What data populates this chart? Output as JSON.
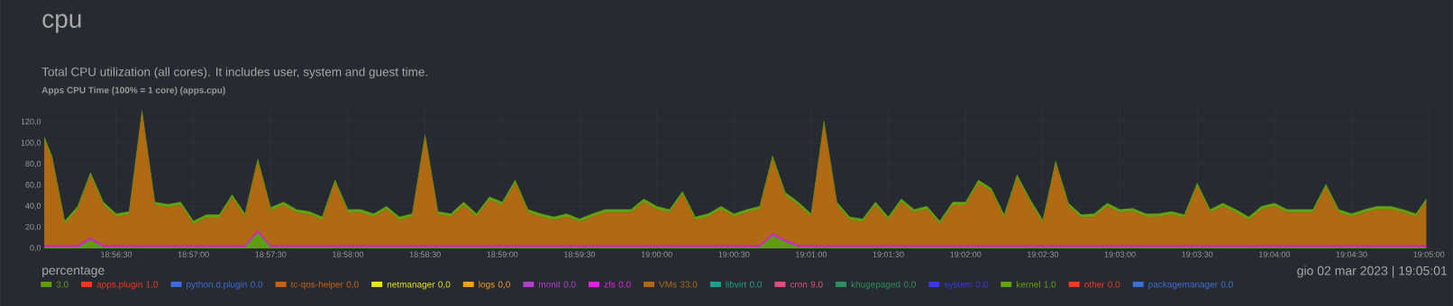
{
  "chart_data": {
    "type": "area",
    "stacked": true,
    "title": "cpu",
    "subtitle": "Total CPU utilization (all cores). It includes user, system and guest time.",
    "annotations": [
      "Apps CPU Time (100% = 1 core) (apps.cpu)",
      "gio 02 mar 2023 | 19:05:01",
      "percentage"
    ],
    "x": [
      "2023-03-02T18:56:02",
      "2023-03-02T18:56:05",
      "2023-03-02T18:56:10",
      "2023-03-02T18:56:15",
      "2023-03-02T18:56:20",
      "2023-03-02T18:56:25",
      "2023-03-02T18:56:30",
      "2023-03-02T18:56:35",
      "2023-03-02T18:56:40",
      "2023-03-02T18:56:45",
      "2023-03-02T18:56:50",
      "2023-03-02T18:56:55",
      "2023-03-02T18:57:00",
      "2023-03-02T18:57:05",
      "2023-03-02T18:57:10",
      "2023-03-02T18:57:15",
      "2023-03-02T18:57:20",
      "2023-03-02T18:57:25",
      "2023-03-02T18:57:30",
      "2023-03-02T18:57:35",
      "2023-03-02T18:57:40",
      "2023-03-02T18:57:45",
      "2023-03-02T18:57:50",
      "2023-03-02T18:57:55",
      "2023-03-02T18:58:00",
      "2023-03-02T18:58:05",
      "2023-03-02T18:58:10",
      "2023-03-02T18:58:15",
      "2023-03-02T18:58:20",
      "2023-03-02T18:58:25",
      "2023-03-02T18:58:30",
      "2023-03-02T18:58:35",
      "2023-03-02T18:58:40",
      "2023-03-02T18:58:45",
      "2023-03-02T18:58:50",
      "2023-03-02T18:58:55",
      "2023-03-02T18:59:00",
      "2023-03-02T18:59:05",
      "2023-03-02T18:59:10",
      "2023-03-02T18:59:15",
      "2023-03-02T18:59:20",
      "2023-03-02T18:59:25",
      "2023-03-02T18:59:30",
      "2023-03-02T18:59:35",
      "2023-03-02T18:59:40",
      "2023-03-02T18:59:45",
      "2023-03-02T18:59:50",
      "2023-03-02T18:59:55",
      "2023-03-02T19:00:00",
      "2023-03-02T19:00:05",
      "2023-03-02T19:00:10",
      "2023-03-02T19:00:15",
      "2023-03-02T19:00:20",
      "2023-03-02T19:00:25",
      "2023-03-02T19:00:30",
      "2023-03-02T19:00:35",
      "2023-03-02T19:00:40",
      "2023-03-02T19:00:45",
      "2023-03-02T19:00:50",
      "2023-03-02T19:00:55",
      "2023-03-02T19:01:00",
      "2023-03-02T19:01:05",
      "2023-03-02T19:01:10",
      "2023-03-02T19:01:15",
      "2023-03-02T19:01:20",
      "2023-03-02T19:01:25",
      "2023-03-02T19:01:30",
      "2023-03-02T19:01:35",
      "2023-03-02T19:01:40",
      "2023-03-02T19:01:45",
      "2023-03-02T19:01:50",
      "2023-03-02T19:01:55",
      "2023-03-02T19:02:00",
      "2023-03-02T19:02:05",
      "2023-03-02T19:02:10",
      "2023-03-02T19:02:15",
      "2023-03-02T19:02:20",
      "2023-03-02T19:02:25",
      "2023-03-02T19:02:30",
      "2023-03-02T19:02:35",
      "2023-03-02T19:02:40",
      "2023-03-02T19:02:45",
      "2023-03-02T19:02:50",
      "2023-03-02T19:02:55",
      "2023-03-02T19:03:00",
      "2023-03-02T19:03:05",
      "2023-03-02T19:03:10",
      "2023-03-02T19:03:15",
      "2023-03-02T19:03:20",
      "2023-03-02T19:03:25",
      "2023-03-02T19:03:30",
      "2023-03-02T19:03:35",
      "2023-03-02T19:03:40",
      "2023-03-02T19:03:45",
      "2023-03-02T19:03:50",
      "2023-03-02T19:03:55",
      "2023-03-02T19:04:00",
      "2023-03-02T19:04:05",
      "2023-03-02T19:04:10",
      "2023-03-02T19:04:15",
      "2023-03-02T19:04:20",
      "2023-03-02T19:04:25",
      "2023-03-02T19:04:30",
      "2023-03-02T19:04:35",
      "2023-03-02T19:04:40",
      "2023-03-02T19:04:45",
      "2023-03-02T19:04:50",
      "2023-03-02T19:04:55",
      "2023-03-02T19:04:59"
    ],
    "xlim": [
      "2023-03-02T18:56:02",
      "2023-03-02T19:05:01"
    ],
    "xticks": [
      {
        "value": "2023-03-02T18:56:30",
        "label": "18:56:30"
      },
      {
        "value": "2023-03-02T18:57:00",
        "label": "18:57:00"
      },
      {
        "value": "2023-03-02T18:57:30",
        "label": "18:57:30"
      },
      {
        "value": "2023-03-02T18:58:00",
        "label": "18:58:00"
      },
      {
        "value": "2023-03-02T18:58:30",
        "label": "18:58:30"
      },
      {
        "value": "2023-03-02T18:59:00",
        "label": "18:59:00"
      },
      {
        "value": "2023-03-02T18:59:30",
        "label": "18:59:30"
      },
      {
        "value": "2023-03-02T19:00:00",
        "label": "19:00:00"
      },
      {
        "value": "2023-03-02T19:00:30",
        "label": "19:00:30"
      },
      {
        "value": "2023-03-02T19:01:00",
        "label": "19:01:00"
      },
      {
        "value": "2023-03-02T19:01:30",
        "label": "19:01:30"
      },
      {
        "value": "2023-03-02T19:02:00",
        "label": "19:02:00"
      },
      {
        "value": "2023-03-02T19:02:30",
        "label": "19:02:30"
      },
      {
        "value": "2023-03-02T19:03:00",
        "label": "19:03:00"
      },
      {
        "value": "2023-03-02T19:03:30",
        "label": "19:03:30"
      },
      {
        "value": "2023-03-02T19:04:00",
        "label": "19:04:00"
      },
      {
        "value": "2023-03-02T19:04:30",
        "label": "19:04:30"
      },
      {
        "value": "2023-03-02T19:05:00",
        "label": "19:05:00"
      }
    ],
    "ylim": [
      0,
      136
    ],
    "yticks": [
      {
        "value": 0,
        "label": "0,0"
      },
      {
        "value": 20,
        "label": "20,0"
      },
      {
        "value": 40,
        "label": "40,0"
      },
      {
        "value": 60,
        "label": "60,0"
      },
      {
        "value": 80,
        "label": "80,0"
      },
      {
        "value": 100,
        "label": "100,0"
      },
      {
        "value": 120,
        "label": "120,0"
      }
    ],
    "grid": true,
    "legend": "bottom",
    "series": [
      {
        "name": "3,0",
        "color": "#5f9e12",
        "values": [
          1,
          1,
          1,
          1,
          8,
          1,
          1,
          1,
          1,
          1,
          1,
          1,
          1,
          1,
          1,
          1,
          1,
          15,
          1,
          1,
          1,
          1,
          1,
          1,
          1,
          1,
          1,
          1,
          1,
          1,
          1,
          1,
          1,
          1,
          1,
          1,
          1,
          1,
          1,
          1,
          1,
          1,
          1,
          1,
          1,
          1,
          1,
          1,
          1,
          1,
          1,
          1,
          1,
          1,
          1,
          1,
          1,
          12,
          6,
          1,
          1,
          1,
          1,
          1,
          1,
          1,
          1,
          1,
          1,
          1,
          1,
          1,
          1,
          1,
          1,
          1,
          1,
          1,
          1,
          1,
          1,
          1,
          1,
          1,
          1,
          1,
          1,
          1,
          1,
          1,
          1,
          1,
          1,
          1,
          1,
          1,
          1,
          1,
          1,
          1,
          1,
          1,
          1,
          1,
          1,
          1,
          1,
          1,
          1
        ]
      },
      {
        "name": "apps.plugin 1,0",
        "color": "#f0391c",
        "values": [
          null,
          null,
          null,
          null,
          null,
          null,
          null,
          null,
          null,
          null,
          null,
          null,
          null,
          null,
          null,
          null,
          null,
          null,
          null,
          null,
          null,
          null,
          null,
          null,
          null,
          null,
          null,
          null,
          null,
          null,
          null,
          null,
          null,
          null,
          null,
          null,
          null,
          null,
          null,
          null,
          null,
          null,
          null,
          null,
          null,
          null,
          null,
          null,
          null,
          null,
          null,
          null,
          null,
          null,
          null,
          null,
          null,
          null,
          null,
          null,
          null,
          null,
          null,
          null,
          null,
          null,
          null,
          null,
          null,
          null,
          null,
          null,
          null,
          null,
          null,
          null,
          null,
          null,
          null,
          null,
          null,
          null,
          null,
          null,
          null,
          null,
          null,
          null,
          null,
          null,
          null,
          null,
          null,
          null,
          null,
          null,
          null,
          null,
          null,
          null,
          null,
          null,
          null,
          null,
          null,
          null,
          null,
          null,
          null
        ]
      },
      {
        "name": "python.d.plugin 0,0",
        "color": "#3b6fd6",
        "values": [
          null,
          null,
          null,
          null,
          null,
          null,
          null,
          null,
          null,
          null,
          null,
          null,
          null,
          null,
          null,
          null,
          null,
          null,
          null,
          null,
          null,
          null,
          null,
          null,
          null,
          null,
          null,
          null,
          null,
          null,
          null,
          null,
          null,
          null,
          null,
          null,
          null,
          null,
          null,
          null,
          null,
          null,
          null,
          null,
          null,
          null,
          null,
          null,
          null,
          null,
          null,
          null,
          null,
          null,
          null,
          null,
          null,
          null,
          null,
          null,
          null,
          null,
          null,
          null,
          null,
          null,
          null,
          null,
          null,
          null,
          null,
          null,
          null,
          null,
          null,
          null,
          null,
          null,
          null,
          null,
          null,
          null,
          null,
          null,
          null,
          null,
          null,
          null,
          null,
          null,
          null,
          null,
          null,
          null,
          null,
          null,
          null,
          null,
          null,
          null,
          null,
          null,
          null,
          null,
          null,
          null,
          null,
          null,
          null
        ]
      },
      {
        "name": "tc-qos-helper 0,0",
        "color": "#c8620f",
        "values": [
          null,
          null,
          null,
          null,
          null,
          null,
          null,
          null,
          null,
          null,
          null,
          null,
          null,
          null,
          null,
          null,
          null,
          null,
          null,
          null,
          null,
          null,
          null,
          null,
          null,
          null,
          null,
          null,
          null,
          null,
          null,
          null,
          null,
          null,
          null,
          null,
          null,
          null,
          null,
          null,
          null,
          null,
          null,
          null,
          null,
          null,
          null,
          null,
          null,
          null,
          null,
          null,
          null,
          null,
          null,
          null,
          null,
          null,
          null,
          null,
          null,
          null,
          null,
          null,
          null,
          null,
          null,
          null,
          null,
          null,
          null,
          null,
          null,
          null,
          null,
          null,
          null,
          null,
          null,
          null,
          null,
          null,
          null,
          null,
          null,
          null,
          null,
          null,
          null,
          null,
          null,
          null,
          null,
          null,
          null,
          null,
          null,
          null,
          null,
          null,
          null,
          null,
          null,
          null,
          null,
          null,
          null,
          null,
          null
        ]
      },
      {
        "name": "netmanager 0,0",
        "color": "#e6e61a",
        "values": [
          null,
          null,
          null,
          null,
          null,
          null,
          null,
          null,
          null,
          null,
          null,
          null,
          null,
          null,
          null,
          null,
          null,
          null,
          null,
          null,
          null,
          null,
          null,
          null,
          null,
          null,
          null,
          null,
          null,
          null,
          null,
          null,
          null,
          null,
          null,
          null,
          null,
          null,
          null,
          null,
          null,
          null,
          null,
          null,
          null,
          null,
          null,
          null,
          null,
          null,
          null,
          null,
          null,
          null,
          null,
          null,
          null,
          null,
          null,
          null,
          null,
          null,
          null,
          null,
          null,
          null,
          null,
          null,
          null,
          null,
          null,
          null,
          null,
          null,
          null,
          null,
          null,
          null,
          null,
          null,
          null,
          null,
          null,
          null,
          null,
          null,
          null,
          null,
          null,
          null,
          null,
          null,
          null,
          null,
          null,
          null,
          null,
          null,
          null,
          null,
          null,
          null,
          null,
          null,
          null,
          null,
          null,
          null,
          null
        ]
      },
      {
        "name": "logs 0,0",
        "color": "#f39c1d",
        "values": [
          null,
          null,
          null,
          null,
          null,
          null,
          null,
          null,
          null,
          null,
          null,
          null,
          null,
          null,
          null,
          null,
          null,
          null,
          null,
          null,
          null,
          null,
          null,
          null,
          null,
          null,
          null,
          null,
          null,
          null,
          null,
          null,
          null,
          null,
          null,
          null,
          null,
          null,
          null,
          null,
          null,
          null,
          null,
          null,
          null,
          null,
          null,
          null,
          null,
          null,
          null,
          null,
          null,
          null,
          null,
          null,
          null,
          null,
          null,
          null,
          null,
          null,
          null,
          null,
          null,
          null,
          null,
          null,
          null,
          null,
          null,
          null,
          null,
          null,
          null,
          null,
          null,
          null,
          null,
          null,
          null,
          null,
          null,
          null,
          null,
          null,
          null,
          null,
          null,
          null,
          null,
          null,
          null,
          null,
          null,
          null,
          null,
          null,
          null,
          null,
          null,
          null,
          null,
          null,
          null,
          null,
          null,
          null,
          null
        ]
      },
      {
        "name": "monit 0,0",
        "color": "#b23fcf",
        "values": [
          null,
          null,
          null,
          null,
          null,
          null,
          null,
          null,
          null,
          null,
          null,
          null,
          null,
          null,
          null,
          null,
          null,
          null,
          null,
          null,
          null,
          null,
          null,
          null,
          null,
          null,
          null,
          null,
          null,
          null,
          null,
          null,
          null,
          null,
          null,
          null,
          null,
          null,
          null,
          null,
          null,
          null,
          null,
          null,
          null,
          null,
          null,
          null,
          null,
          null,
          null,
          null,
          null,
          null,
          null,
          null,
          null,
          null,
          null,
          null,
          null,
          null,
          null,
          null,
          null,
          null,
          null,
          null,
          null,
          null,
          null,
          null,
          null,
          null,
          null,
          null,
          null,
          null,
          null,
          null,
          null,
          null,
          null,
          null,
          null,
          null,
          null,
          null,
          null,
          null,
          null,
          null,
          null,
          null,
          null,
          null,
          null,
          null,
          null,
          null,
          null,
          null,
          null,
          null,
          null,
          null,
          null,
          null,
          null
        ]
      },
      {
        "name": "zfs 0,0",
        "color": "#e01fe0",
        "values": [
          2,
          2,
          2,
          2,
          2,
          2,
          2,
          2,
          2,
          2,
          2,
          2,
          2,
          2,
          2,
          2,
          2,
          2,
          2,
          2,
          2,
          2,
          2,
          2,
          2,
          2,
          2,
          2,
          2,
          2,
          2,
          2,
          2,
          2,
          2,
          2,
          2,
          2,
          2,
          2,
          2,
          2,
          2,
          2,
          2,
          2,
          2,
          2,
          2,
          2,
          2,
          2,
          2,
          2,
          2,
          2,
          2,
          2,
          2,
          2,
          2,
          2,
          2,
          2,
          2,
          2,
          2,
          2,
          2,
          2,
          2,
          2,
          2,
          2,
          2,
          2,
          2,
          2,
          2,
          2,
          2,
          2,
          2,
          2,
          2,
          2,
          2,
          2,
          2,
          2,
          2,
          2,
          2,
          2,
          2,
          2,
          2,
          2,
          2,
          2,
          2,
          2,
          2,
          2,
          2,
          2,
          2,
          2,
          2
        ]
      },
      {
        "name": "VMs 33,0",
        "color": "#b06a14",
        "values": [
          100,
          82,
          20,
          34,
          59,
          38,
          27,
          29,
          125,
          38,
          36,
          38,
          20,
          26,
          26,
          45,
          27,
          65,
          33,
          38,
          31,
          29,
          24,
          59,
          31,
          31,
          27,
          34,
          24,
          27,
          102,
          29,
          27,
          38,
          27,
          43,
          38,
          59,
          31,
          27,
          24,
          27,
          22,
          27,
          31,
          31,
          31,
          41,
          34,
          31,
          48,
          24,
          27,
          34,
          27,
          31,
          34,
          71,
          42,
          38,
          27,
          115,
          38,
          24,
          22,
          38,
          24,
          41,
          31,
          34,
          20,
          38,
          38,
          59,
          51,
          26,
          64,
          41,
          21,
          77,
          37,
          26,
          27,
          37,
          31,
          32,
          27,
          27,
          29,
          26,
          56,
          31,
          37,
          31,
          24,
          34,
          37,
          31,
          31,
          31,
          55,
          31,
          27,
          31,
          34,
          34,
          31,
          27,
          41
        ]
      },
      {
        "name": "libvirt 0,0",
        "color": "#1fa08f",
        "values": [
          null,
          null,
          null,
          null,
          null,
          null,
          null,
          null,
          null,
          null,
          null,
          null,
          null,
          null,
          null,
          null,
          null,
          null,
          null,
          null,
          null,
          null,
          null,
          null,
          null,
          null,
          null,
          null,
          null,
          null,
          null,
          null,
          null,
          null,
          null,
          null,
          null,
          null,
          null,
          null,
          null,
          null,
          null,
          null,
          null,
          null,
          null,
          null,
          null,
          null,
          null,
          null,
          null,
          null,
          null,
          null,
          null,
          null,
          null,
          null,
          null,
          null,
          null,
          null,
          null,
          null,
          null,
          null,
          null,
          null,
          null,
          null,
          null,
          null,
          null,
          null,
          null,
          null,
          null,
          null,
          null,
          null,
          null,
          null,
          null,
          null,
          null,
          null,
          null,
          null,
          null,
          null,
          null,
          null,
          null,
          null,
          null,
          null,
          null,
          null,
          null,
          null,
          null,
          null,
          null,
          null,
          null,
          null,
          null
        ]
      },
      {
        "name": "cron 9,0",
        "color": "#e0507c",
        "values": [
          null,
          null,
          null,
          null,
          null,
          null,
          null,
          null,
          null,
          null,
          null,
          null,
          null,
          null,
          null,
          null,
          null,
          null,
          null,
          null,
          null,
          null,
          null,
          null,
          null,
          null,
          null,
          null,
          null,
          null,
          null,
          null,
          null,
          null,
          null,
          null,
          null,
          null,
          null,
          null,
          null,
          null,
          null,
          null,
          null,
          null,
          null,
          null,
          null,
          null,
          null,
          null,
          null,
          null,
          null,
          null,
          null,
          null,
          null,
          null,
          null,
          null,
          null,
          null,
          null,
          null,
          null,
          null,
          null,
          null,
          null,
          null,
          null,
          null,
          null,
          null,
          null,
          null,
          null,
          null,
          null,
          null,
          null,
          null,
          null,
          null,
          null,
          null,
          null,
          null,
          null,
          null,
          null,
          null,
          null,
          null,
          null,
          null,
          null,
          null,
          null,
          null,
          null,
          null,
          null,
          null,
          null,
          null,
          null
        ]
      },
      {
        "name": "khugepaged 0,0",
        "color": "#2e8f5e",
        "values": [
          null,
          null,
          null,
          null,
          null,
          null,
          null,
          null,
          null,
          null,
          null,
          null,
          null,
          null,
          null,
          null,
          null,
          null,
          null,
          null,
          null,
          null,
          null,
          null,
          null,
          null,
          null,
          null,
          null,
          null,
          null,
          null,
          null,
          null,
          null,
          null,
          null,
          null,
          null,
          null,
          null,
          null,
          null,
          null,
          null,
          null,
          null,
          null,
          null,
          null,
          null,
          null,
          null,
          null,
          null,
          null,
          null,
          null,
          null,
          null,
          null,
          null,
          null,
          null,
          null,
          null,
          null,
          null,
          null,
          null,
          null,
          null,
          null,
          null,
          null,
          null,
          null,
          null,
          null,
          null,
          null,
          null,
          null,
          null,
          null,
          null,
          null,
          null,
          null,
          null,
          null,
          null,
          null,
          null,
          null,
          null,
          null,
          null,
          null,
          null,
          null,
          null,
          null,
          null,
          null,
          null,
          null,
          null,
          null
        ]
      },
      {
        "name": "system 0,0",
        "color": "#3838e6",
        "values": [
          null,
          null,
          null,
          null,
          null,
          null,
          null,
          null,
          null,
          null,
          null,
          null,
          null,
          null,
          null,
          null,
          null,
          null,
          null,
          null,
          null,
          null,
          null,
          null,
          null,
          null,
          null,
          null,
          null,
          null,
          null,
          null,
          null,
          null,
          null,
          null,
          null,
          null,
          null,
          null,
          null,
          null,
          null,
          null,
          null,
          null,
          null,
          null,
          null,
          null,
          null,
          null,
          null,
          null,
          null,
          null,
          null,
          null,
          null,
          null,
          null,
          null,
          null,
          null,
          null,
          null,
          null,
          null,
          null,
          null,
          null,
          null,
          null,
          null,
          null,
          null,
          null,
          null,
          null,
          null,
          null,
          null,
          null,
          null,
          null,
          null,
          null,
          null,
          null,
          null,
          null,
          null,
          null,
          null,
          null,
          null,
          null,
          null,
          null,
          null,
          null,
          null,
          null,
          null,
          null,
          null,
          null,
          null,
          null
        ]
      },
      {
        "name": "kernel 1,0",
        "color": "#62a312",
        "values": [
          3,
          3,
          3,
          3,
          3,
          3,
          3,
          3,
          3,
          3,
          3,
          3,
          3,
          3,
          3,
          3,
          3,
          3,
          3,
          3,
          3,
          3,
          3,
          3,
          3,
          3,
          3,
          3,
          3,
          3,
          3,
          3,
          3,
          3,
          3,
          3,
          3,
          3,
          3,
          3,
          3,
          3,
          3,
          3,
          3,
          3,
          3,
          3,
          3,
          3,
          3,
          3,
          3,
          3,
          3,
          3,
          3,
          3,
          3,
          3,
          3,
          3,
          3,
          3,
          3,
          3,
          3,
          3,
          3,
          3,
          3,
          3,
          3,
          3,
          3,
          3,
          3,
          3,
          3,
          3,
          3,
          3,
          3,
          3,
          3,
          3,
          3,
          3,
          3,
          3,
          3,
          3,
          3,
          3,
          3,
          3,
          3,
          3,
          3,
          3,
          3,
          3,
          3,
          3,
          3,
          3,
          3,
          3,
          3
        ]
      },
      {
        "name": "other 0,0",
        "color": "#ee3a20",
        "values": [
          null,
          null,
          null,
          null,
          null,
          null,
          null,
          null,
          null,
          null,
          null,
          null,
          null,
          null,
          null,
          null,
          null,
          null,
          null,
          null,
          null,
          null,
          null,
          null,
          null,
          null,
          null,
          null,
          null,
          null,
          null,
          null,
          null,
          null,
          null,
          null,
          null,
          null,
          null,
          null,
          null,
          null,
          null,
          null,
          null,
          null,
          null,
          null,
          null,
          null,
          null,
          null,
          null,
          null,
          null,
          null,
          null,
          null,
          null,
          null,
          null,
          null,
          null,
          null,
          null,
          null,
          null,
          null,
          null,
          null,
          null,
          null,
          null,
          null,
          null,
          null,
          null,
          null,
          null,
          null,
          null,
          null,
          null,
          null,
          null,
          null,
          null,
          null,
          null,
          null,
          null,
          null,
          null,
          null,
          null,
          null,
          null,
          null,
          null,
          null,
          null,
          null,
          null,
          null,
          null,
          null,
          null,
          null,
          null
        ]
      },
      {
        "name": "packagemanager 0,0",
        "color": "#3b6fd6",
        "values": [
          null,
          null,
          null,
          null,
          null,
          null,
          null,
          null,
          null,
          null,
          null,
          null,
          null,
          null,
          null,
          null,
          null,
          null,
          null,
          null,
          null,
          null,
          null,
          null,
          null,
          null,
          null,
          null,
          null,
          null,
          null,
          null,
          null,
          null,
          null,
          null,
          null,
          null,
          null,
          null,
          null,
          null,
          null,
          null,
          null,
          null,
          null,
          null,
          null,
          null,
          null,
          null,
          null,
          null,
          null,
          null,
          null,
          null,
          null,
          null,
          null,
          null,
          null,
          null,
          null,
          null,
          null,
          null,
          null,
          null,
          null,
          null,
          null,
          null,
          null,
          null,
          null,
          null,
          null,
          null,
          null,
          null,
          null,
          null,
          null,
          null,
          null,
          null,
          null,
          null,
          null,
          null,
          null,
          null,
          null,
          null,
          null,
          null,
          null,
          null,
          null,
          null,
          null,
          null,
          null,
          null,
          null,
          null,
          null
        ]
      }
    ]
  }
}
